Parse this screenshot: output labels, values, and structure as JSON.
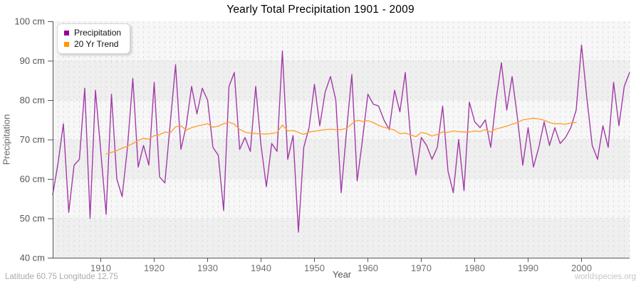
{
  "page": {
    "title": "Yearly Total Precipitation 1901 - 2009",
    "footer_left": "Latitude 60.75 Longitude 12.75",
    "footer_right": "worldspecies.org"
  },
  "legend": {
    "items": [
      {
        "label": "Precipitation",
        "color": "#990099"
      },
      {
        "label": "20 Yr Trend",
        "color": "#FF9900"
      }
    ]
  },
  "axes": {
    "x_label": "Year",
    "y_label": "Precipitation",
    "x_ticks": [
      1910,
      1920,
      1930,
      1940,
      1950,
      1960,
      1970,
      1980,
      1990,
      2000
    ],
    "y_ticks": [
      40,
      50,
      60,
      70,
      80,
      90,
      100
    ],
    "y_tick_labels": [
      "40 cm",
      "50 cm",
      "60 cm",
      "70 cm",
      "80 cm",
      "90 cm",
      "100 cm"
    ]
  },
  "chart_data": {
    "type": "line",
    "title": "Yearly Total Precipitation 1901 - 2009",
    "xlabel": "Year",
    "ylabel": "Precipitation",
    "y_unit": "cm",
    "x_range": [
      1901,
      2009
    ],
    "ylim": [
      40,
      100
    ],
    "grid": true,
    "legend_position": "top-left",
    "band_colors": [
      "#efefef",
      "#f7f7f7"
    ],
    "series": [
      {
        "name": "Precipitation",
        "color": "#A23AA8",
        "x_start": 1901,
        "values": [
          56,
          64,
          74,
          51.5,
          63.5,
          65,
          83,
          50,
          82.5,
          67,
          51,
          81.5,
          60,
          55.5,
          68,
          85.5,
          63,
          68.5,
          63.5,
          84.5,
          60.5,
          59,
          74,
          89,
          67.5,
          73.5,
          83.5,
          76.5,
          83,
          80,
          68,
          66,
          52,
          83.5,
          87,
          67.5,
          70.5,
          67,
          83.5,
          68.5,
          58,
          69,
          67,
          92.5,
          65,
          71,
          46.5,
          68,
          73,
          84,
          73.5,
          82,
          86,
          80,
          56.5,
          72,
          86.5,
          59.5,
          70,
          81.5,
          79,
          78.5,
          75,
          72.5,
          82.5,
          77,
          87,
          70.5,
          61,
          70.5,
          68.5,
          65,
          68,
          78.5,
          62,
          56.5,
          70,
          57,
          79.5,
          74.5,
          73,
          75,
          68,
          80,
          89.5,
          77.5,
          86,
          75.5,
          63.5,
          73,
          63,
          68,
          74.5,
          68.5,
          73,
          69,
          70.5,
          73,
          77.5,
          94,
          80.5,
          68.5,
          65,
          73.5,
          68,
          84.5,
          73.5,
          83.5,
          87
        ]
      },
      {
        "name": "20 Yr Trend",
        "color": "#FFA233",
        "x_start": 1911,
        "values": [
          66.3,
          66.7,
          67.2,
          67.8,
          68.3,
          69.0,
          69.8,
          70.3,
          70.1,
          71.0,
          71.2,
          71.9,
          71.7,
          73.2,
          73.5,
          72.4,
          73.0,
          73.4,
          73.7,
          74.0,
          73.1,
          73.4,
          74.0,
          74.4,
          73.9,
          72.6,
          71.9,
          71.6,
          71.5,
          71.4,
          71.4,
          71.5,
          71.8,
          73.7,
          72.2,
          72.3,
          71.8,
          71.3,
          71.9,
          72.1,
          72.3,
          72.5,
          72.6,
          72.5,
          72.5,
          72.8,
          74.0,
          74.9,
          74.6,
          74.8,
          74.3,
          73.6,
          73.1,
          72.8,
          72.4,
          71.5,
          71.6,
          71.2,
          70.7,
          71.8,
          71.5,
          70.9,
          71.3,
          71.9,
          71.8,
          72.2,
          72.0,
          71.9,
          71.9,
          72.2,
          72.0,
          72.5,
          71.9,
          72.7,
          73.0,
          73.4,
          73.9,
          74.3,
          75.0,
          75.2,
          75.4,
          75.2,
          74.9,
          74.3,
          74.0,
          74.0,
          73.9,
          74.2,
          74.3
        ]
      }
    ]
  }
}
